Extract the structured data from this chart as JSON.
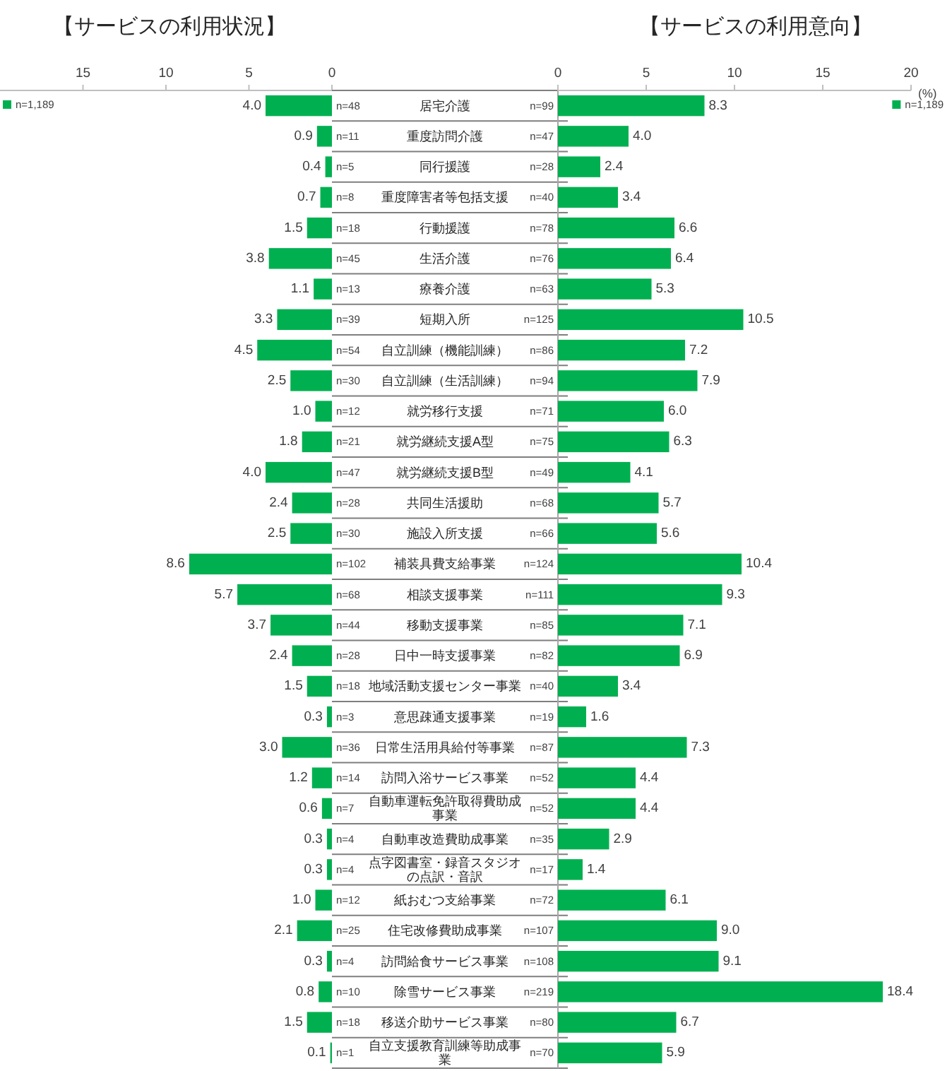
{
  "chart_data": [
    {
      "type": "bar",
      "orientation": "horizontal",
      "title": "【サービスの利用状況】",
      "legend": "top left",
      "tick_labels": "x",
      "xlim": [
        20,
        0
      ],
      "xticks": [
        15,
        10,
        5,
        0
      ],
      "categories": [
        "居宅介護",
        "重度訪問介護",
        "同行援護",
        "重度障害者等包括支援",
        "行動援護",
        "生活介護",
        "療養介護",
        "短期入所",
        "自立訓練（機能訓練）",
        "自立訓練（生活訓練）",
        "就労移行支援",
        "就労継続支援A型",
        "就労継続支援B型",
        "共同生活援助",
        "施設入所支援",
        "補装具費支給事業",
        "相談支援事業",
        "移動支援事業",
        "日中一時支援事業",
        "地域活動支援センター事業",
        "意思疎通支援事業",
        "日常生活用具給付等事業",
        "訪問入浴サービス事業",
        "自動車運転免許取得費助成事業",
        "自動車改造費助成事業",
        "点字図書室・録音スタジオの点訳・音訳",
        "紙おむつ支給事業",
        "住宅改修費助成事業",
        "訪問給食サービス事業",
        "除雪サービス事業",
        "移送介助サービス事業",
        "自立支援教育訓練等助成事業"
      ],
      "series": [
        {
          "name": "n=1,189",
          "color": "#00b050",
          "values": [
            4.0,
            0.9,
            0.4,
            0.7,
            1.5,
            3.8,
            1.1,
            3.3,
            4.5,
            2.5,
            1.0,
            1.8,
            4.0,
            2.4,
            2.5,
            8.6,
            5.7,
            3.7,
            2.4,
            1.5,
            0.3,
            3.0,
            1.2,
            0.6,
            0.3,
            0.3,
            1.0,
            2.1,
            0.3,
            0.8,
            1.5,
            0.1
          ],
          "value_labels": [
            "4.0",
            "0.9",
            "0.4",
            "0.7",
            "1.5",
            "3.8",
            "1.1",
            "3.3",
            "4.5",
            "2.5",
            "1.0",
            "1.8",
            "4.0",
            "2.4",
            "2.5",
            "8.6",
            "5.7",
            "3.7",
            "2.4",
            "1.5",
            "0.3",
            "3.0",
            "1.2",
            "0.6",
            "0.3",
            "0.3",
            "1.0",
            "2.1",
            "0.3",
            "0.8",
            "1.5",
            "0.1"
          ]
        }
      ],
      "annotations": [
        "n=48",
        "n=11",
        "n=5",
        "n=8",
        "n=18",
        "n=45",
        "n=13",
        "n=39",
        "n=54",
        "n=30",
        "n=12",
        "n=21",
        "n=47",
        "n=28",
        "n=30",
        "n=102",
        "n=68",
        "n=44",
        "n=28",
        "n=18",
        "n=3",
        "n=36",
        "n=14",
        "n=7",
        "n=4",
        "n=4",
        "n=12",
        "n=25",
        "n=4",
        "n=10",
        "n=18",
        "n=1"
      ]
    },
    {
      "type": "bar",
      "orientation": "horizontal",
      "title": "【サービスの利用意向】",
      "xlabel": "(%)",
      "legend": "top right",
      "xlim": [
        0,
        20
      ],
      "xticks": [
        0,
        5,
        10,
        15,
        20
      ],
      "categories": [
        "居宅介護",
        "重度訪問介護",
        "同行援護",
        "重度障害者等包括支援",
        "行動援護",
        "生活介護",
        "療養介護",
        "短期入所",
        "自立訓練（機能訓練）",
        "自立訓練（生活訓練）",
        "就労移行支援",
        "就労継続支援A型",
        "就労継続支援B型",
        "共同生活援助",
        "施設入所支援",
        "補装具費支給事業",
        "相談支援事業",
        "移動支援事業",
        "日中一時支援事業",
        "地域活動支援センター事業",
        "意思疎通支援事業",
        "日常生活用具給付等事業",
        "訪問入浴サービス事業",
        "自動車運転免許取得費助成事業",
        "自動車改造費助成事業",
        "点字図書室・録音スタジオの点訳・音訳",
        "紙おむつ支給事業",
        "住宅改修費助成事業",
        "訪問給食サービス事業",
        "除雪サービス事業",
        "移送介助サービス事業",
        "自立支援教育訓練等助成事業"
      ],
      "series": [
        {
          "name": "n=1,189",
          "color": "#00b050",
          "values": [
            8.3,
            4.0,
            2.4,
            3.4,
            6.6,
            6.4,
            5.3,
            10.5,
            7.2,
            7.9,
            6.0,
            6.3,
            4.1,
            5.7,
            5.6,
            10.4,
            9.3,
            7.1,
            6.9,
            3.4,
            1.6,
            7.3,
            4.4,
            4.4,
            2.9,
            1.4,
            6.1,
            9.0,
            9.1,
            18.4,
            6.7,
            5.9
          ],
          "value_labels": [
            "8.3",
            "4.0",
            "2.4",
            "3.4",
            "6.6",
            "6.4",
            "5.3",
            "10.5",
            "7.2",
            "7.9",
            "6.0",
            "6.3",
            "4.1",
            "5.7",
            "5.6",
            "10.4",
            "9.3",
            "7.1",
            "6.9",
            "3.4",
            "1.6",
            "7.3",
            "4.4",
            "4.4",
            "2.9",
            "1.4",
            "6.1",
            "9.0",
            "9.1",
            "18.4",
            "6.7",
            "5.9"
          ]
        }
      ],
      "annotations": [
        "n=99",
        "n=47",
        "n=28",
        "n=40",
        "n=78",
        "n=76",
        "n=63",
        "n=125",
        "n=86",
        "n=94",
        "n=71",
        "n=75",
        "n=49",
        "n=68",
        "n=66",
        "n=124",
        "n=111",
        "n=85",
        "n=82",
        "n=40",
        "n=19",
        "n=87",
        "n=52",
        "n=52",
        "n=35",
        "n=17",
        "n=72",
        "n=107",
        "n=108",
        "n=219",
        "n=80",
        "n=70"
      ]
    }
  ]
}
